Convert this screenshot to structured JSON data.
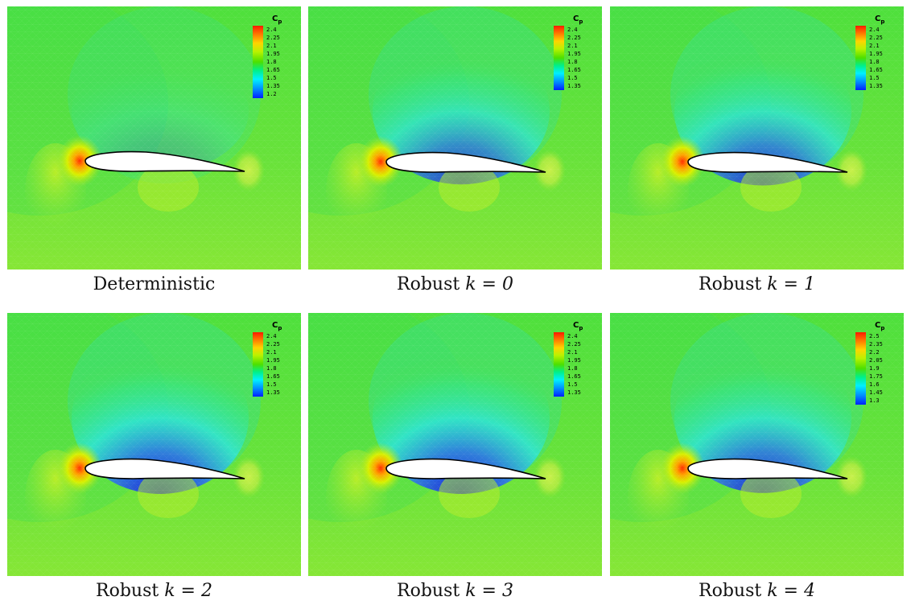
{
  "legend_title": "C",
  "legend_subscript": "p",
  "colors": {
    "background": "#5fe23a",
    "airfoil_fill": "#ffffff",
    "airfoil_stroke": "#000000",
    "stagnation": "#ff3b00",
    "low_pressure": "#1e1ee6"
  },
  "panels": [
    {
      "caption_text": "Deterministic",
      "caption_k": "",
      "ticks": [
        "2.4",
        "2.25",
        "2.1",
        "1.95",
        "1.8",
        "1.65",
        "1.5",
        "1.35",
        "1.2"
      ],
      "suction_strength": 0.25
    },
    {
      "caption_text": "Robust ",
      "caption_k": "k = 0",
      "ticks": [
        "2.4",
        "2.25",
        "2.1",
        "1.95",
        "1.8",
        "1.65",
        "1.5",
        "1.35"
      ],
      "suction_strength": 0.85
    },
    {
      "caption_text": "Robust ",
      "caption_k": "k = 1",
      "ticks": [
        "2.4",
        "2.25",
        "2.1",
        "1.95",
        "1.8",
        "1.65",
        "1.5",
        "1.35"
      ],
      "suction_strength": 0.9
    },
    {
      "caption_text": "Robust ",
      "caption_k": "k = 2",
      "ticks": [
        "2.4",
        "2.25",
        "2.1",
        "1.95",
        "1.8",
        "1.65",
        "1.5",
        "1.35"
      ],
      "suction_strength": 1.0
    },
    {
      "caption_text": "Robust ",
      "caption_k": "k = 3",
      "ticks": [
        "2.4",
        "2.25",
        "2.1",
        "1.95",
        "1.8",
        "1.65",
        "1.5",
        "1.35"
      ],
      "suction_strength": 1.0
    },
    {
      "caption_text": "Robust ",
      "caption_k": "k = 4",
      "ticks": [
        "2.5",
        "2.35",
        "2.2",
        "2.05",
        "1.9",
        "1.75",
        "1.6",
        "1.45",
        "1.3"
      ],
      "suction_strength": 0.95
    }
  ]
}
